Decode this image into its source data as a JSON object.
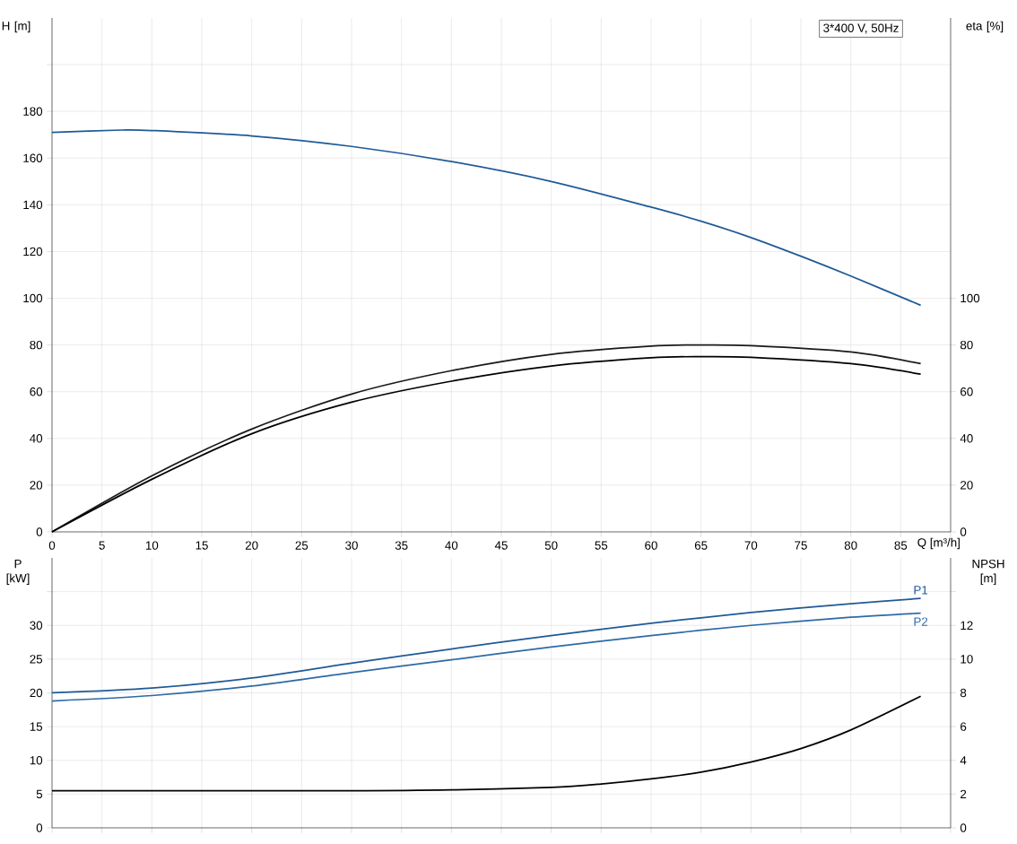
{
  "chart_data": [
    {
      "type": "line",
      "xlabel": "Q [m³/h]",
      "ylabel": "H [m]",
      "y2label": "eta [%]",
      "annotations": [
        "3*400 V, 50Hz"
      ],
      "xlim": [
        0,
        90
      ],
      "xticks": [
        0,
        5,
        10,
        15,
        20,
        25,
        30,
        35,
        40,
        45,
        50,
        55,
        60,
        65,
        70,
        75,
        80,
        85,
        {
          "value": 90,
          "label": null
        }
      ],
      "ylim": [
        0,
        220
      ],
      "yticks": [
        0,
        20,
        40,
        60,
        80,
        100,
        120,
        140,
        160,
        180,
        {
          "value": 200,
          "label": null
        }
      ],
      "y2lim": [
        0,
        220
      ],
      "y2ticks": [
        0,
        20,
        40,
        60,
        80,
        100
      ],
      "grid": true,
      "series": [
        {
          "color": "#1f5a96",
          "x": [
            0,
            7,
            10,
            20,
            30,
            40,
            50,
            60,
            65,
            70,
            75,
            80,
            87
          ],
          "values": [
            171,
            172,
            171.8,
            169.5,
            165,
            158.5,
            150,
            139,
            133,
            126,
            118,
            109.5,
            97
          ]
        },
        {
          "color": "#1a1a1a",
          "axis": "y2",
          "x": [
            0,
            10,
            20,
            30,
            40,
            50,
            60,
            65,
            70,
            80,
            87
          ],
          "values": [
            0,
            24,
            44,
            59,
            69,
            76,
            79.5,
            80,
            79.7,
            77,
            72
          ]
        },
        {
          "color": "#000000",
          "axis": "y2",
          "x": [
            0,
            10,
            20,
            30,
            40,
            50,
            60,
            65,
            70,
            80,
            87
          ],
          "values": [
            0,
            22.5,
            42,
            55.5,
            64.5,
            71,
            74.5,
            75,
            74.7,
            72,
            67.5
          ]
        }
      ]
    },
    {
      "type": "line",
      "ylabel": "P [kW]",
      "y2label": "NPSH [m]",
      "xlim": [
        0,
        90
      ],
      "xticks": [
        0,
        5,
        10,
        15,
        20,
        25,
        30,
        35,
        40,
        45,
        50,
        55,
        60,
        65,
        70,
        75,
        80,
        85,
        90
      ],
      "ylim": [
        0,
        40
      ],
      "yticks": [
        0,
        5,
        10,
        15,
        20,
        25,
        30,
        {
          "value": 35,
          "label": null
        }
      ],
      "y2lim": [
        0,
        16
      ],
      "y2ticks": [
        0,
        2,
        4,
        6,
        8,
        10,
        12,
        {
          "value": 14,
          "label": null
        }
      ],
      "grid": true,
      "tick_labels": "y",
      "series": [
        {
          "name": "P1",
          "color": "#1f5a96",
          "x": [
            0,
            10,
            20,
            30,
            40,
            50,
            60,
            70,
            80,
            87
          ],
          "values": [
            20,
            20.7,
            22.2,
            24.4,
            26.5,
            28.5,
            30.3,
            31.9,
            33.2,
            34
          ]
        },
        {
          "name": "P2",
          "color": "#2e6aa6",
          "x": [
            0,
            10,
            20,
            30,
            40,
            50,
            60,
            70,
            80,
            87
          ],
          "values": [
            18.8,
            19.6,
            21,
            23,
            24.9,
            26.8,
            28.5,
            30,
            31.2,
            31.8
          ]
        },
        {
          "color": "#000000",
          "axis": "y2",
          "x": [
            0,
            30,
            40,
            50,
            55,
            60,
            65,
            70,
            75,
            80,
            87
          ],
          "values": [
            2.2,
            2.2,
            2.25,
            2.4,
            2.6,
            2.9,
            3.3,
            3.9,
            4.7,
            5.8,
            7.8
          ]
        }
      ]
    }
  ]
}
